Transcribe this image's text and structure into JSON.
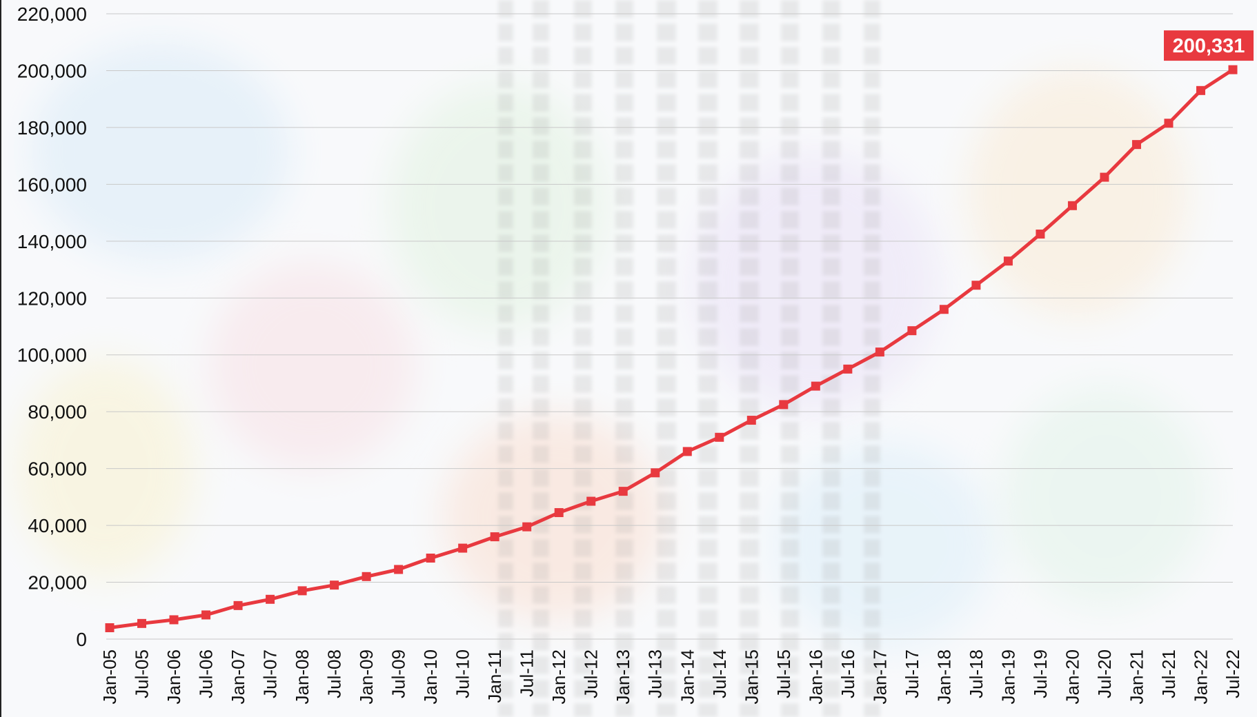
{
  "colors": {
    "series": "#e8393f",
    "callout": "#e8393f"
  },
  "chart_data": {
    "type": "line",
    "title": "",
    "xlabel": "",
    "ylabel": "",
    "ylim": [
      0,
      220000
    ],
    "yticks": [
      0,
      20000,
      40000,
      60000,
      80000,
      100000,
      120000,
      140000,
      160000,
      180000,
      200000,
      220000
    ],
    "ytick_labels": [
      "0",
      "20,000",
      "40,000",
      "60,000",
      "80,000",
      "100,000",
      "120,000",
      "140,000",
      "160,000",
      "180,000",
      "200,000",
      "220,000"
    ],
    "grid": true,
    "legend": "none",
    "categories": [
      "Jan-05",
      "Jul-05",
      "Jan-06",
      "Jul-06",
      "Jan-07",
      "Jul-07",
      "Jan-08",
      "Jul-08",
      "Jan-09",
      "Jul-09",
      "Jan-10",
      "Jul-10",
      "Jan-11",
      "Jul-11",
      "Jan-12",
      "Jul-12",
      "Jan-13",
      "Jul-13",
      "Jan-14",
      "Jul-14",
      "Jan-15",
      "Jul-15",
      "Jan-16",
      "Jul-16",
      "Jan-17",
      "Jul-17",
      "Jan-18",
      "Jul-18",
      "Jan-19",
      "Jul-19",
      "Jan-20",
      "Jul-20",
      "Jan-21",
      "Jul-21",
      "Jan-22",
      "Jul-22"
    ],
    "series": [
      {
        "values": [
          4000,
          5500,
          6800,
          8500,
          11800,
          14000,
          17000,
          19000,
          22000,
          24500,
          28500,
          32000,
          36000,
          39500,
          44500,
          48500,
          52000,
          58500,
          66000,
          71000,
          77000,
          82500,
          89000,
          95000,
          101000,
          108500,
          116000,
          124500,
          133000,
          142500,
          152500,
          162500,
          174000,
          181500,
          193000,
          200331
        ],
        "marker": "square"
      }
    ],
    "annotations": [
      {
        "category": "Jul-22",
        "value": 200331,
        "text": "200,331"
      }
    ]
  }
}
